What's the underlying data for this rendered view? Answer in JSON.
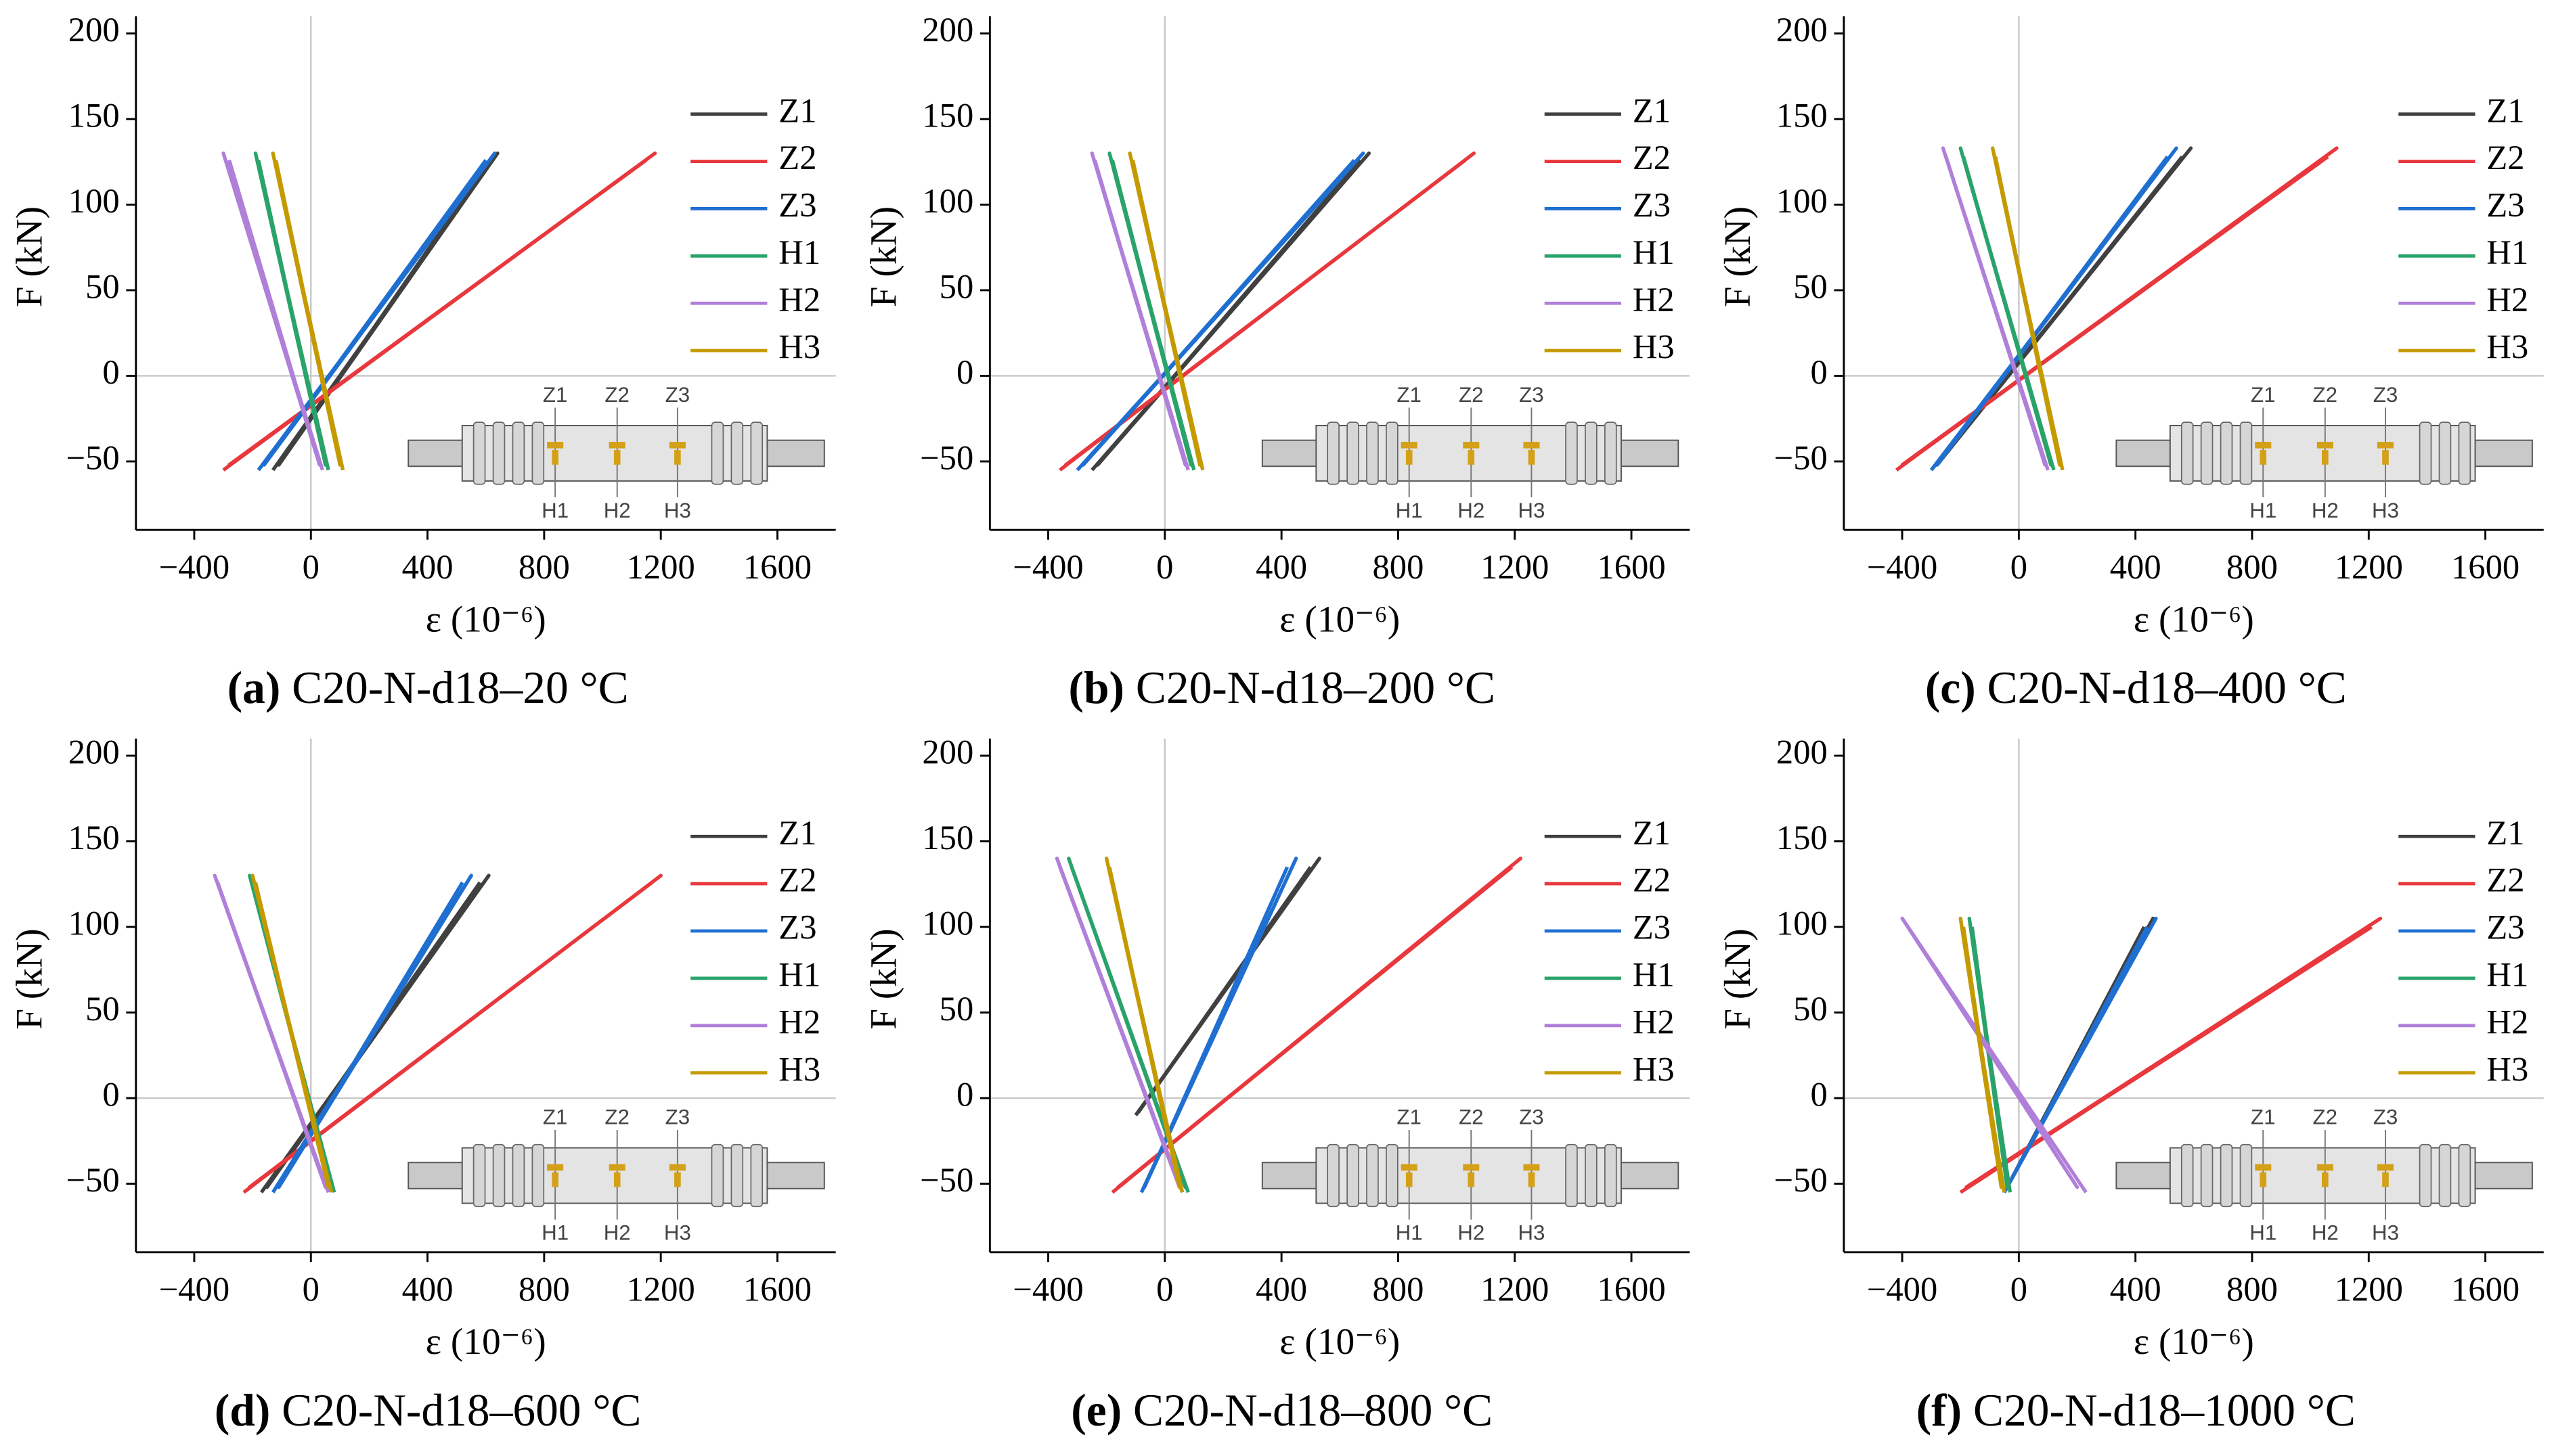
{
  "chart_data": [
    {
      "type": "line",
      "panel": "(a)",
      "title": "C20-N-d18–20 °C",
      "xlabel": "ε (10⁻⁶)",
      "ylabel": "F (kN)",
      "xlim": [
        -600,
        1800
      ],
      "ylim": [
        -90,
        210
      ],
      "xticks": [
        {
          "value": -400,
          "label": "−400"
        },
        0,
        400,
        800,
        1200,
        1600
      ],
      "yticks": [
        {
          "value": -50,
          "label": "−50"
        },
        0,
        50,
        100,
        150,
        200
      ],
      "inset": {
        "top": [
          "Z1",
          "Z2",
          "Z3"
        ],
        "bottom": [
          "H1",
          "H2",
          "H3"
        ]
      },
      "series": [
        {
          "name": "Z1",
          "color": "#404040",
          "x": [
            -130,
            640,
            -110,
            610
          ],
          "values": [
            -55,
            130,
            -52,
            125
          ]
        },
        {
          "name": "Z2",
          "color": "#e8383d",
          "x": [
            -300,
            1180,
            -280,
            1150
          ],
          "values": [
            -55,
            130,
            -52,
            126
          ]
        },
        {
          "name": "Z3",
          "color": "#1f6fd1",
          "x": [
            -180,
            630,
            -160,
            600
          ],
          "values": [
            -55,
            130,
            -52,
            126
          ]
        },
        {
          "name": "H1",
          "color": "#2aa36b",
          "x": [
            60,
            -190,
            50,
            -180
          ],
          "values": [
            -55,
            130,
            -52,
            126
          ]
        },
        {
          "name": "H2",
          "color": "#b07fd9",
          "x": [
            40,
            -300,
            30,
            -280
          ],
          "values": [
            -55,
            130,
            -52,
            126
          ]
        },
        {
          "name": "H3",
          "color": "#c49a00",
          "x": [
            110,
            -130,
            100,
            -120
          ],
          "values": [
            -55,
            130,
            -52,
            126
          ]
        }
      ]
    },
    {
      "type": "line",
      "panel": "(b)",
      "title": "C20-N-d18–200 °C",
      "xlabel": "ε (10⁻⁶)",
      "ylabel": "F (kN)",
      "xlim": [
        -600,
        1800
      ],
      "ylim": [
        -90,
        210
      ],
      "xticks": [
        {
          "value": -400,
          "label": "−400"
        },
        0,
        400,
        800,
        1200,
        1600
      ],
      "yticks": [
        {
          "value": -50,
          "label": "−50"
        },
        0,
        50,
        100,
        150,
        200
      ],
      "inset": {
        "top": [
          "Z1",
          "Z2",
          "Z3"
        ],
        "bottom": [
          "H1",
          "H2",
          "H3"
        ]
      },
      "series": [
        {
          "name": "Z1",
          "color": "#404040",
          "x": [
            -250,
            700,
            -230,
            670
          ],
          "values": [
            -55,
            130,
            -52,
            126
          ]
        },
        {
          "name": "Z2",
          "color": "#e8383d",
          "x": [
            -360,
            1060,
            -340,
            1030
          ],
          "values": [
            -55,
            130,
            -52,
            126
          ]
        },
        {
          "name": "Z3",
          "color": "#1f6fd1",
          "x": [
            -300,
            680,
            -280,
            650
          ],
          "values": [
            -55,
            130,
            -52,
            126
          ]
        },
        {
          "name": "H1",
          "color": "#2aa36b",
          "x": [
            100,
            -190,
            90,
            -180
          ],
          "values": [
            -55,
            130,
            -52,
            126
          ]
        },
        {
          "name": "H2",
          "color": "#b07fd9",
          "x": [
            80,
            -250,
            70,
            -240
          ],
          "values": [
            -55,
            130,
            -52,
            126
          ]
        },
        {
          "name": "H3",
          "color": "#c49a00",
          "x": [
            130,
            -120,
            120,
            -110
          ],
          "values": [
            -55,
            130,
            -52,
            126
          ]
        }
      ]
    },
    {
      "type": "line",
      "panel": "(c)",
      "title": "C20-N-d18–400 °C",
      "xlabel": "ε (10⁻⁶)",
      "ylabel": "F (kN)",
      "xlim": [
        -600,
        1800
      ],
      "ylim": [
        -90,
        210
      ],
      "xticks": [
        {
          "value": -400,
          "label": "−400"
        },
        0,
        400,
        800,
        1200,
        1600
      ],
      "yticks": [
        {
          "value": -50,
          "label": "−50"
        },
        0,
        50,
        100,
        150,
        200
      ],
      "inset": {
        "top": [
          "Z1",
          "Z2",
          "Z3"
        ],
        "bottom": [
          "H1",
          "H2",
          "H3"
        ]
      },
      "series": [
        {
          "name": "Z1",
          "color": "#404040",
          "x": [
            -300,
            590,
            -280,
            560
          ],
          "values": [
            -55,
            133,
            -52,
            128
          ]
        },
        {
          "name": "Z2",
          "color": "#e8383d",
          "x": [
            -420,
            1090,
            -400,
            1060
          ],
          "values": [
            -55,
            133,
            -52,
            128
          ]
        },
        {
          "name": "Z3",
          "color": "#1f6fd1",
          "x": [
            -300,
            540,
            -280,
            510
          ],
          "values": [
            -55,
            133,
            -52,
            128
          ]
        },
        {
          "name": "H1",
          "color": "#2aa36b",
          "x": [
            120,
            -200,
            110,
            -190
          ],
          "values": [
            -55,
            133,
            -52,
            128
          ]
        },
        {
          "name": "H2",
          "color": "#b07fd9",
          "x": [
            100,
            -260,
            90,
            -250
          ],
          "values": [
            -55,
            133,
            -52,
            128
          ]
        },
        {
          "name": "H3",
          "color": "#c49a00",
          "x": [
            150,
            -90,
            140,
            -80
          ],
          "values": [
            -55,
            133,
            -52,
            128
          ]
        }
      ]
    },
    {
      "type": "line",
      "panel": "(d)",
      "title": "C20-N-d18–600 °C",
      "xlabel": "ε (10⁻⁶)",
      "ylabel": "F (kN)",
      "xlim": [
        -600,
        1800
      ],
      "ylim": [
        -90,
        210
      ],
      "xticks": [
        {
          "value": -400,
          "label": "−400"
        },
        0,
        400,
        800,
        1200,
        1600
      ],
      "yticks": [
        {
          "value": -50,
          "label": "−50"
        },
        0,
        50,
        100,
        150,
        200
      ],
      "inset": {
        "top": [
          "Z1",
          "Z2",
          "Z3"
        ],
        "bottom": [
          "H1",
          "H2",
          "H3"
        ]
      },
      "series": [
        {
          "name": "Z1",
          "color": "#404040",
          "x": [
            -170,
            610,
            -150,
            580
          ],
          "values": [
            -55,
            130,
            -52,
            126
          ]
        },
        {
          "name": "Z2",
          "color": "#e8383d",
          "x": [
            -230,
            1200,
            -210,
            1170
          ],
          "values": [
            -55,
            130,
            -52,
            126
          ]
        },
        {
          "name": "Z3",
          "color": "#1f6fd1",
          "x": [
            -130,
            550,
            -110,
            520
          ],
          "values": [
            -55,
            130,
            -52,
            126
          ]
        },
        {
          "name": "H1",
          "color": "#2aa36b",
          "x": [
            80,
            -210,
            70,
            -200
          ],
          "values": [
            -55,
            130,
            -52,
            126
          ]
        },
        {
          "name": "H2",
          "color": "#b07fd9",
          "x": [
            60,
            -330,
            50,
            -320
          ],
          "values": [
            -55,
            130,
            -52,
            126
          ]
        },
        {
          "name": "H3",
          "color": "#c49a00",
          "x": [
            70,
            -200,
            60,
            -190
          ],
          "values": [
            -55,
            130,
            -52,
            126
          ]
        }
      ]
    },
    {
      "type": "line",
      "panel": "(e)",
      "title": "C20-N-d18–800 °C",
      "xlabel": "ε (10⁻⁶)",
      "ylabel": "F (kN)",
      "xlim": [
        -600,
        1800
      ],
      "ylim": [
        -90,
        210
      ],
      "xticks": [
        {
          "value": -400,
          "label": "−400"
        },
        0,
        400,
        800,
        1200,
        1600
      ],
      "yticks": [
        {
          "value": -50,
          "label": "−50"
        },
        0,
        50,
        100,
        150,
        200
      ],
      "inset": {
        "top": [
          "Z1",
          "Z2",
          "Z3"
        ],
        "bottom": [
          "H1",
          "H2",
          "H3"
        ]
      },
      "series": [
        {
          "name": "Z1",
          "color": "#404040",
          "x": [
            -100,
            530,
            -90,
            500
          ],
          "values": [
            -10,
            140,
            -8,
            135
          ]
        },
        {
          "name": "Z2",
          "color": "#e8383d",
          "x": [
            -180,
            1220,
            -160,
            1190
          ],
          "values": [
            -55,
            140,
            -52,
            135
          ]
        },
        {
          "name": "Z3",
          "color": "#1f6fd1",
          "x": [
            -80,
            450,
            -70,
            420
          ],
          "values": [
            -55,
            140,
            -52,
            135
          ]
        },
        {
          "name": "H1",
          "color": "#2aa36b",
          "x": [
            80,
            -330,
            70,
            -320
          ],
          "values": [
            -55,
            140,
            -52,
            135
          ]
        },
        {
          "name": "H2",
          "color": "#b07fd9",
          "x": [
            60,
            -370,
            50,
            -360
          ],
          "values": [
            -55,
            140,
            -52,
            135
          ]
        },
        {
          "name": "H3",
          "color": "#c49a00",
          "x": [
            60,
            -200,
            50,
            -190
          ],
          "values": [
            -55,
            140,
            -52,
            135
          ]
        }
      ]
    },
    {
      "type": "line",
      "panel": "(f)",
      "title": "C20-N-d18–1000 °C",
      "xlabel": "ε (10⁻⁶)",
      "ylabel": "F (kN)",
      "xlim": [
        -600,
        1800
      ],
      "ylim": [
        -90,
        210
      ],
      "xticks": [
        {
          "value": -400,
          "label": "−400"
        },
        0,
        400,
        800,
        1200,
        1600
      ],
      "yticks": [
        {
          "value": -50,
          "label": "−50"
        },
        0,
        50,
        100,
        150,
        200
      ],
      "inset": {
        "top": [
          "Z1",
          "Z2",
          "Z3"
        ],
        "bottom": [
          "H1",
          "H2",
          "H3"
        ]
      },
      "series": [
        {
          "name": "Z1",
          "color": "#404040",
          "x": [
            -50,
            460,
            -40,
            430
          ],
          "values": [
            -55,
            105,
            -52,
            100
          ]
        },
        {
          "name": "Z2",
          "color": "#e8383d",
          "x": [
            -200,
            1240,
            -180,
            1210
          ],
          "values": [
            -55,
            105,
            -52,
            100
          ]
        },
        {
          "name": "Z3",
          "color": "#1f6fd1",
          "x": [
            -50,
            470,
            -40,
            440
          ],
          "values": [
            -55,
            105,
            -52,
            100
          ]
        },
        {
          "name": "H1",
          "color": "#2aa36b",
          "x": [
            -30,
            -170,
            -40,
            -160
          ],
          "values": [
            -55,
            105,
            -52,
            100
          ]
        },
        {
          "name": "H2",
          "color": "#b07fd9",
          "x": [
            230,
            -400,
            200,
            -380
          ],
          "values": [
            -55,
            105,
            -52,
            100
          ]
        },
        {
          "name": "H3",
          "color": "#c49a00",
          "x": [
            -50,
            -200,
            -60,
            -190
          ],
          "values": [
            -55,
            105,
            -52,
            100
          ]
        }
      ]
    }
  ]
}
